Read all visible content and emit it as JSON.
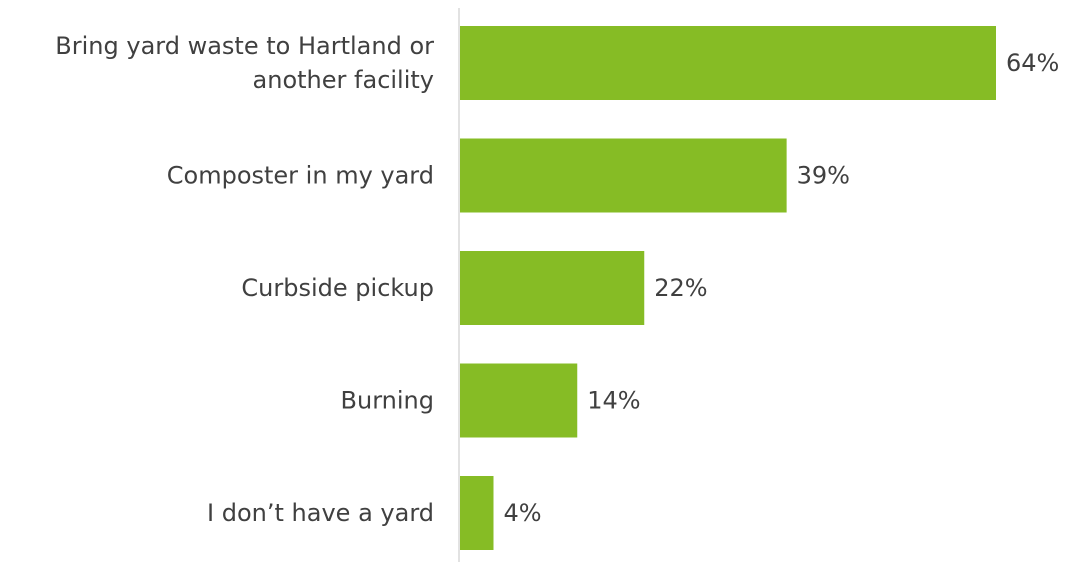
{
  "chart_data": {
    "type": "bar",
    "orientation": "horizontal",
    "title": "",
    "xlabel": "",
    "ylabel": "",
    "categories": [
      "Bring yard waste to Hartland or another facility",
      "Composter in my yard",
      "Curbside pickup",
      "Burning",
      "I don’t have a yard"
    ],
    "category_label_lines": [
      [
        "Bring yard waste to Hartland or",
        "another facility"
      ],
      [
        "Composter in my yard"
      ],
      [
        "Curbside pickup"
      ],
      [
        "Burning"
      ],
      [
        "I don’t have a yard"
      ]
    ],
    "values": [
      64,
      39,
      22,
      14,
      4
    ],
    "value_labels": [
      "64%",
      "39%",
      "22%",
      "14%",
      "4%"
    ],
    "xlim": [
      0,
      64
    ],
    "grid": false,
    "legend": "none",
    "colors": {
      "bar": "#86bc25",
      "axis": "#d9d9d9",
      "text": "#404040"
    }
  }
}
